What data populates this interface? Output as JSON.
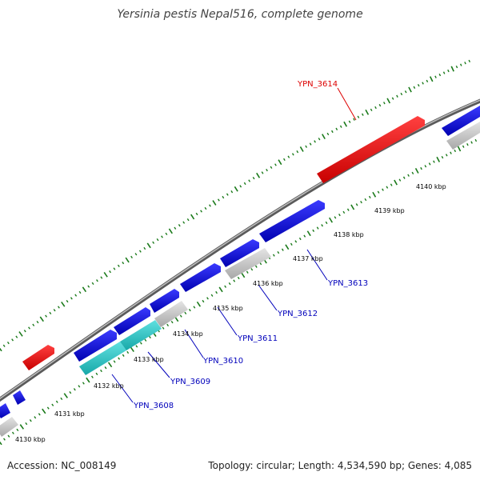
{
  "title": "Yersinia pestis Nepal516, complete genome",
  "accession": "Accession: NC_008149",
  "topology": "Topology: circular; Length: 4,534,590 bp; Genes: 4,085",
  "ruler_labels": [
    "4130 kbp",
    "4131 kbp",
    "4132 kbp",
    "4133 kbp",
    "4134 kbp",
    "4135 kbp",
    "4136 kbp",
    "4137 kbp",
    "4138 kbp",
    "4139 kbp",
    "4140 kbp"
  ],
  "gene_labels": [
    "YPN_3608",
    "YPN_3609",
    "YPN_3610",
    "YPN_3611",
    "YPN_3612",
    "YPN_3613",
    "YPN_3614"
  ],
  "colors": {
    "forward_gene": "#0000ee",
    "reverse_gene_gray": "#c0c0c0",
    "cyan_gene": "#22c4c4",
    "highlight_gene": "#ee0000",
    "backbone": "#777777",
    "tick": "#1a7a1a",
    "label_blue": "#0000bb",
    "label_red": "#dd0000"
  },
  "icons": [
    "forward-arrow-shape",
    "rectangle-shape"
  ]
}
